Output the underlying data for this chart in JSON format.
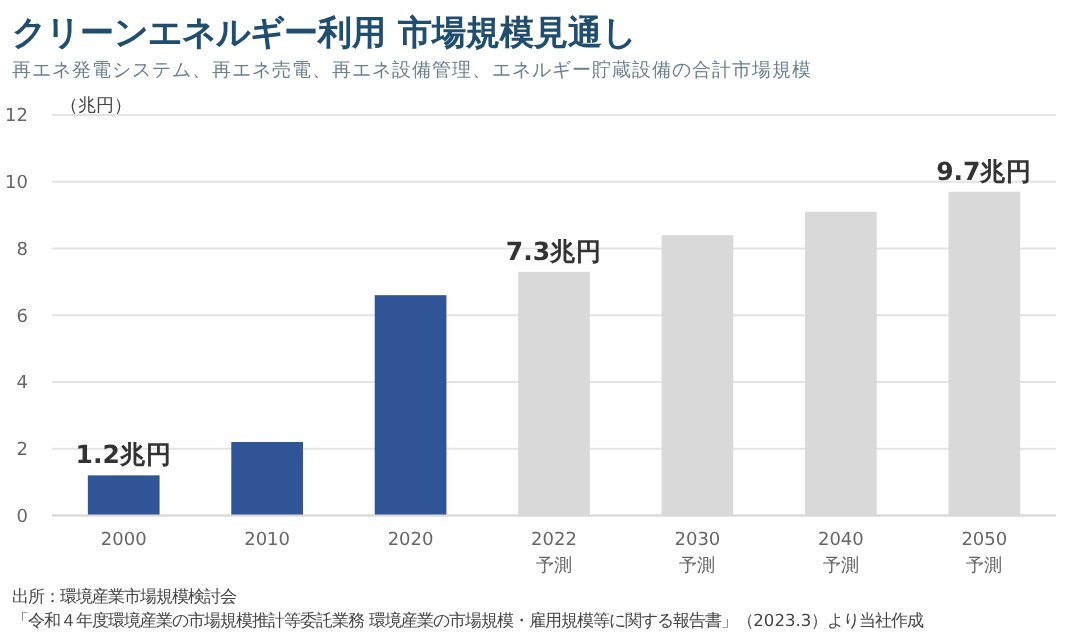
{
  "chart_data": {
    "type": "bar",
    "title": "クリーンエネルギー利用 市場規模見通し",
    "subtitle": "再エネ発電システム、再エネ売電、再エネ設備管理、エネルギー貯蔵設備の合計市場規模",
    "ylabel": "（兆円）",
    "categories": [
      "2000",
      "2010",
      "2020",
      "2022\n予測",
      "2030\n予測",
      "2040\n予測",
      "2050\n予測"
    ],
    "values": [
      1.2,
      2.2,
      6.6,
      7.3,
      8.4,
      9.1,
      9.7
    ],
    "colors": [
      "#2f5597",
      "#2f5597",
      "#2f5597",
      "#d9d9d9",
      "#d9d9d9",
      "#d9d9d9",
      "#d9d9d9"
    ],
    "value_labels": [
      "1.2兆円",
      null,
      null,
      "7.3兆円",
      null,
      null,
      "9.7兆円"
    ],
    "ylim": [
      0,
      12
    ],
    "yticks": [
      0,
      2,
      4,
      6,
      8,
      10,
      12
    ],
    "grid": "y",
    "annotations": [
      "出所：環境産業市場規模検討会",
      "「令和４年度環境産業の市場規模推計等委託業務 環境産業の市場規模・雇用規模等に関する報告書」（2023.3）より当社作成"
    ]
  }
}
